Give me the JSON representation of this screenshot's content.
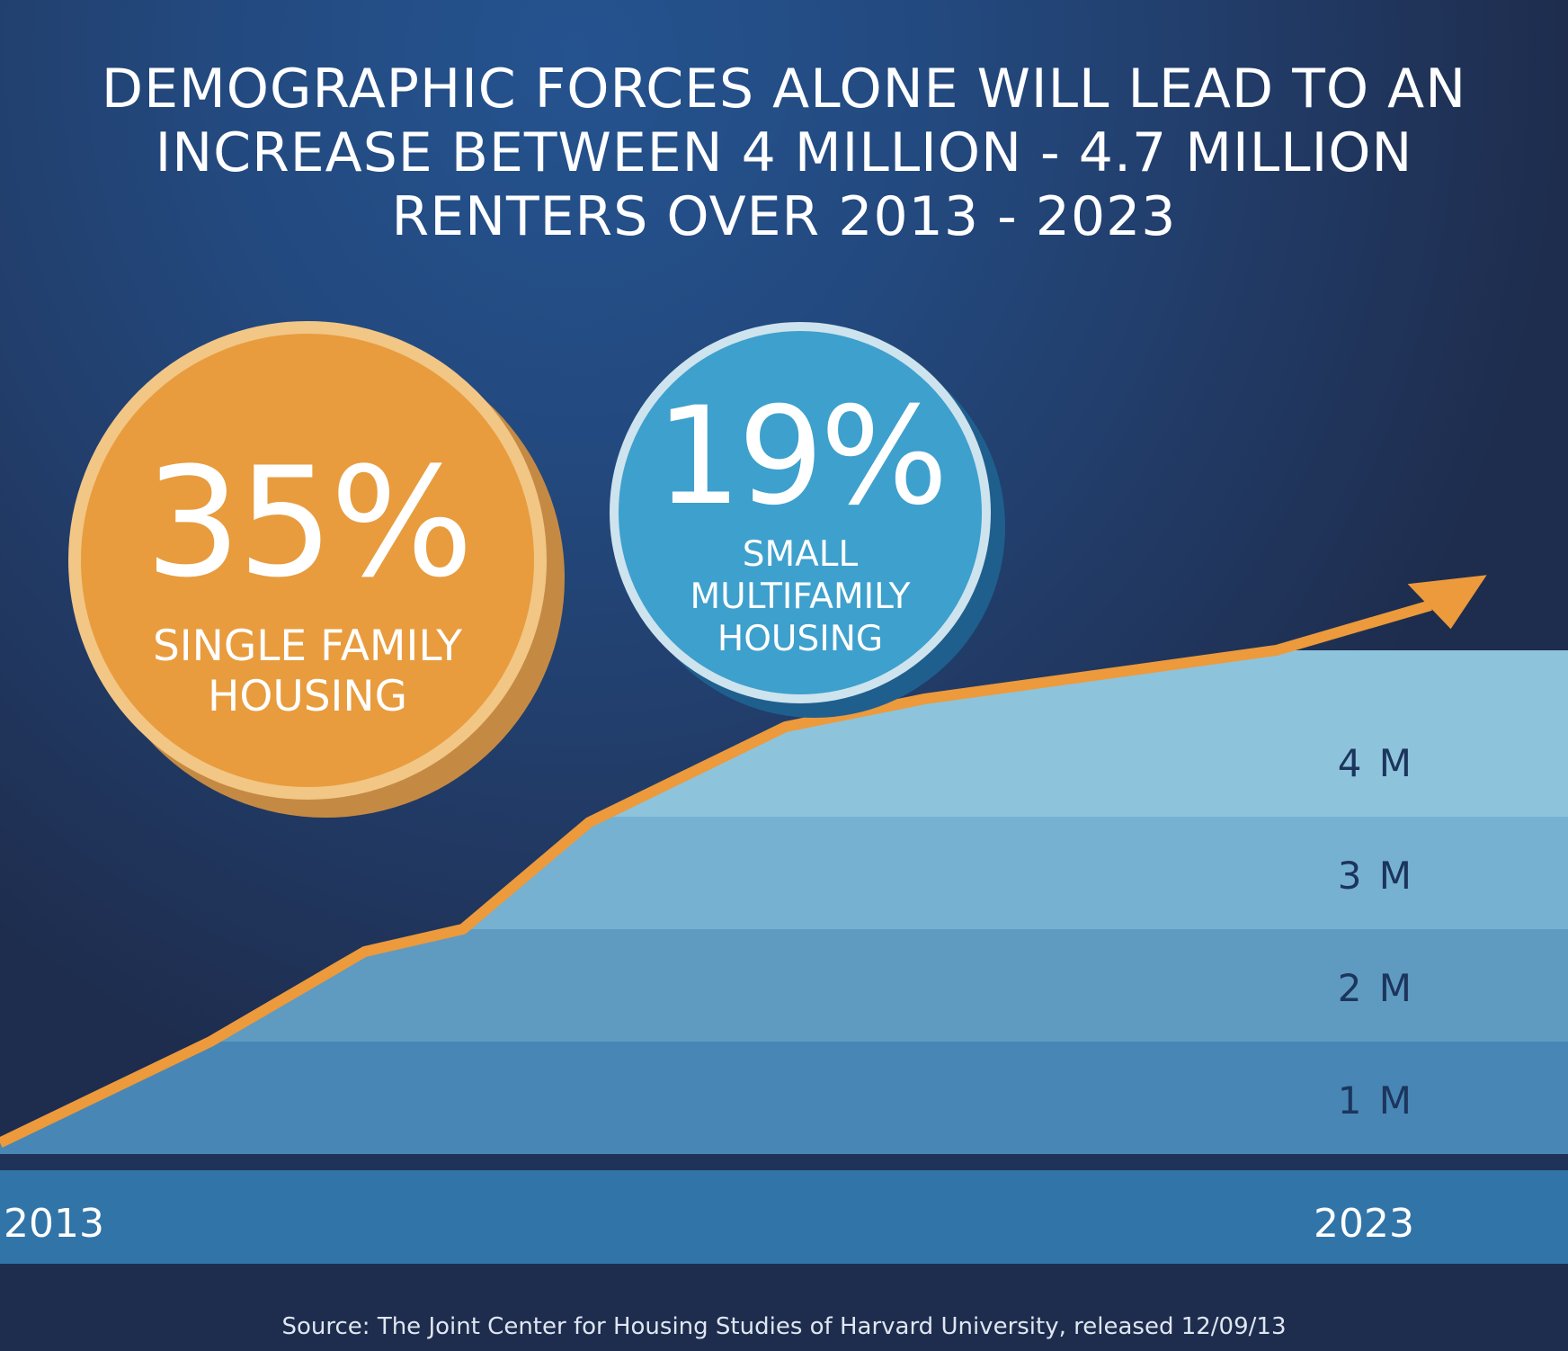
{
  "title_lines": [
    "DEMOGRAPHIC FORCES ALONE WILL LEAD TO AN",
    "INCREASE BETWEEN 4 MILLION - 4.7 MILLION",
    "RENTERS OVER 2013 - 2023"
  ],
  "badges": [
    {
      "value": "35%",
      "caption_lines": [
        "SINGLE FAMILY",
        "HOUSING"
      ]
    },
    {
      "value": "19%",
      "caption_lines": [
        "SMALL",
        "MULTIFAMILY",
        "HOUSING"
      ]
    }
  ],
  "source": "Source: The Joint Center for Housing Studies of Harvard University, released 12/09/13",
  "colors": {
    "line": "#ec9a3c",
    "band_1m": "#4887b5",
    "band_2m": "#5f9ac1",
    "band_3m": "#76b1d2",
    "band_4m": "#8ec3dc",
    "axis_band": "#3174a8",
    "label": "#1c355c"
  },
  "chart_data": {
    "type": "area",
    "x_labels": [
      "2013",
      "2023"
    ],
    "y_tick_labels": [
      "1 M",
      "2 M",
      "3 M",
      "4 M"
    ],
    "y_ticks": [
      1,
      2,
      3,
      4
    ],
    "ylim": [
      0,
      4.5
    ],
    "x": [
      2013,
      2014.5,
      2015.6,
      2016.3,
      2017.2,
      2018.6,
      2019.6,
      2022.1
    ],
    "y": [
      0.1,
      1.0,
      1.8,
      2.0,
      2.95,
      3.8,
      4.05,
      4.48
    ],
    "trend_arrow": true,
    "grid": false,
    "legend": "none"
  }
}
